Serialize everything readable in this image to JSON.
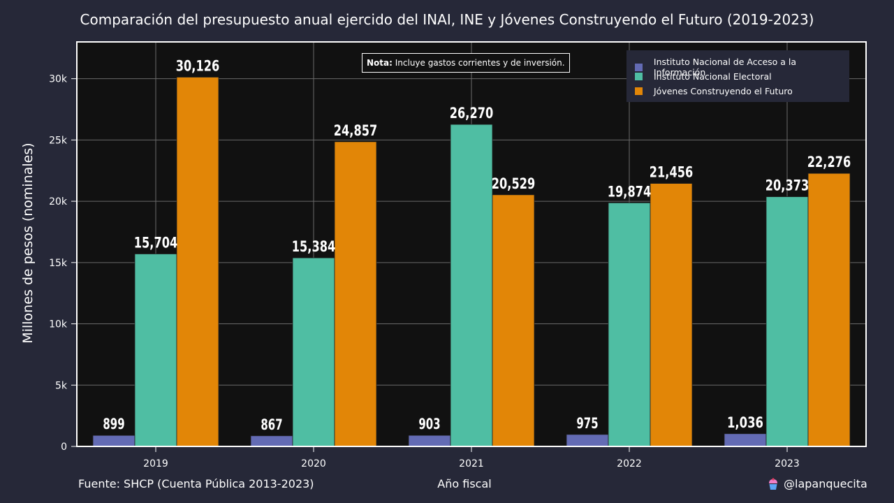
{
  "title": "Comparación del presupuesto anual ejercido del INAI, INE y Jóvenes Construyendo el Futuro (2019-2023)",
  "note": {
    "bold": "Nota:",
    "text": " Incluye gastos corrientes y de inversión."
  },
  "footer": {
    "source": "Fuente: SHCP (Cuenta Pública 2013-2023)",
    "handle": "@lapanquecita",
    "handle_icon": "cupcake-icon"
  },
  "chart_data": {
    "type": "bar",
    "title": "Comparación del presupuesto anual ejercido del INAI, INE y Jóvenes Construyendo el Futuro (2019-2023)",
    "xlabel": "Año fiscal",
    "ylabel": "Millones de pesos (nominales)",
    "categories": [
      "2019",
      "2020",
      "2021",
      "2022",
      "2023"
    ],
    "ylim": [
      0,
      33000
    ],
    "yticks": [
      0,
      5000,
      10000,
      15000,
      20000,
      25000,
      30000
    ],
    "ytick_labels": [
      "0",
      "5k",
      "10k",
      "15k",
      "20k",
      "25k",
      "30k"
    ],
    "grid": true,
    "legend_position": "top-right",
    "series": [
      {
        "name": "Instituto Nacional de Acceso a la Información",
        "color": "#636bb4",
        "values": [
          899,
          867,
          903,
          975,
          1036
        ],
        "labels": [
          "899",
          "867",
          "903",
          "975",
          "1,036"
        ]
      },
      {
        "name": "Instituto Nacional Electoral",
        "color": "#4fbea3",
        "values": [
          15704,
          15384,
          26270,
          19874,
          20373
        ],
        "labels": [
          "15,704",
          "15,384",
          "26,270",
          "19,874",
          "20,373"
        ]
      },
      {
        "name": "Jóvenes Construyendo el Futuro",
        "color": "#e28607",
        "values": [
          30126,
          24857,
          20529,
          21456,
          22276
        ],
        "labels": [
          "30,126",
          "24,857",
          "20,529",
          "21,456",
          "22,276"
        ]
      }
    ]
  }
}
